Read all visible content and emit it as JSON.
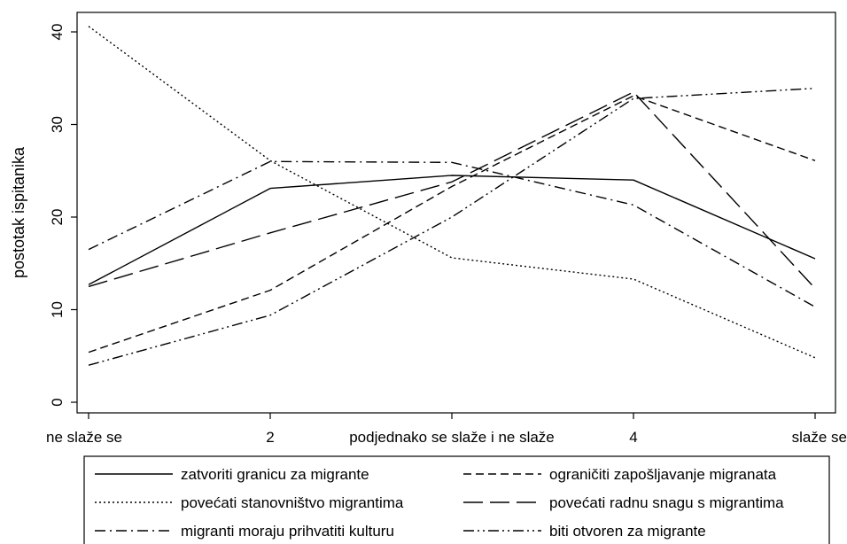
{
  "chart_data": {
    "type": "line",
    "title": "",
    "xlabel": "",
    "ylabel": "postotak ispitanika",
    "categories": [
      "ne slaže se",
      "2",
      "podjednako se slaže i ne slaže",
      "4",
      "slaže se"
    ],
    "x": [
      1,
      2,
      3,
      4,
      5
    ],
    "xlim": [
      1,
      5
    ],
    "ylim": [
      0,
      40
    ],
    "yticks": [
      0,
      10,
      20,
      30,
      40
    ],
    "grid": false,
    "legend_position": "bottom",
    "series": [
      {
        "name": "zatvoriti granicu za migrante",
        "values": [
          12.7,
          23.1,
          24.5,
          24.0,
          15.5
        ],
        "dash": "solid"
      },
      {
        "name": "ograničiti zapošljavanje migranata",
        "values": [
          5.4,
          12.1,
          23.3,
          33.1,
          26.1
        ],
        "dash": "dash"
      },
      {
        "name": "povećati stanovništvo migrantima",
        "values": [
          40.6,
          26.1,
          15.6,
          13.3,
          4.8
        ],
        "dash": "dot"
      },
      {
        "name": "povećati radnu snagu s migrantima",
        "values": [
          12.5,
          18.3,
          23.8,
          33.5,
          12.3
        ],
        "dash": "longdash"
      },
      {
        "name": "migranti moraju prihvatiti kulturu",
        "values": [
          16.5,
          26.0,
          25.9,
          21.3,
          10.3
        ],
        "dash": "dashdot"
      },
      {
        "name": "biti otvoren za migrante",
        "values": [
          4.0,
          9.4,
          20.0,
          32.8,
          33.9
        ],
        "dash": "dashdotdot"
      }
    ]
  }
}
